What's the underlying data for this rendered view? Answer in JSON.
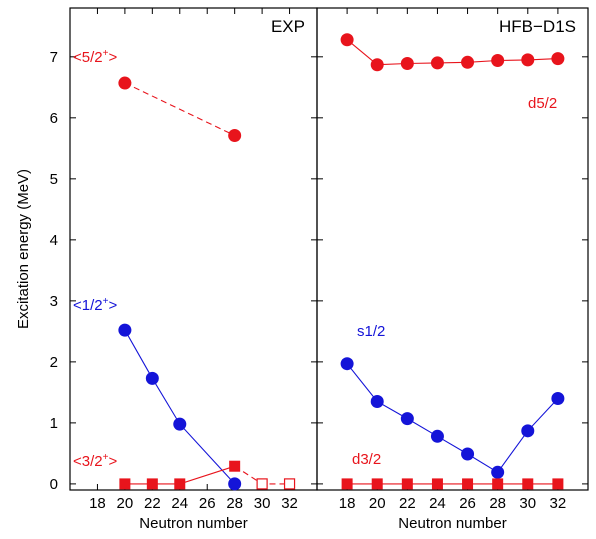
{
  "chart_data": [
    {
      "type": "scatter",
      "title": "EXP",
      "xlabel": "Neutron number",
      "ylabel": "Excitation energy (MeV)",
      "xlim": [
        16,
        34
      ],
      "ylim": [
        -0.1,
        7.8
      ],
      "xticks": [
        18,
        20,
        22,
        24,
        26,
        28,
        30,
        32
      ],
      "yticks": [
        0,
        1,
        2,
        3,
        4,
        5,
        6,
        7
      ],
      "grid": false,
      "series": [
        {
          "name": "<5/2+>",
          "label_main": "<5/2",
          "label_sup": "+",
          "label_end": ">",
          "color": "#e8141c",
          "marker": "circle",
          "line": "dashed",
          "x": [
            20,
            28
          ],
          "y": [
            6.57,
            5.71
          ]
        },
        {
          "name": "<1/2+>",
          "label_main": "<1/2",
          "label_sup": "+",
          "label_end": ">",
          "color": "#1414d8",
          "marker": "circle",
          "line": "solid",
          "x": [
            20,
            22,
            24,
            28
          ],
          "y": [
            2.52,
            1.73,
            0.98,
            0.0
          ]
        },
        {
          "name": "<3/2+>",
          "label_main": "<3/2",
          "label_sup": "+",
          "label_end": ">",
          "color": "#e8141c",
          "marker": "square",
          "line": "solid",
          "x": [
            20,
            22,
            24,
            28
          ],
          "y": [
            0.0,
            0.0,
            0.0,
            0.29
          ]
        },
        {
          "name": "<3/2+> open",
          "color": "#e8141c",
          "marker": "open-square",
          "line": "dashed",
          "x": [
            28,
            30,
            32
          ],
          "y": [
            0.29,
            0.0,
            0.0
          ]
        }
      ]
    },
    {
      "type": "scatter",
      "title": "HFB−D1S",
      "xlabel": "Neutron number",
      "ylabel": "",
      "xlim": [
        16,
        34
      ],
      "ylim": [
        -0.1,
        7.8
      ],
      "xticks": [
        18,
        20,
        22,
        24,
        26,
        28,
        30,
        32
      ],
      "yticks": [
        0,
        1,
        2,
        3,
        4,
        5,
        6,
        7
      ],
      "grid": false,
      "series": [
        {
          "name": "d5/2",
          "color": "#e8141c",
          "marker": "circle",
          "line": "solid",
          "x": [
            18,
            20,
            22,
            24,
            26,
            28,
            30,
            32
          ],
          "y": [
            7.28,
            6.87,
            6.89,
            6.9,
            6.91,
            6.94,
            6.95,
            6.97
          ]
        },
        {
          "name": "s1/2",
          "color": "#1414d8",
          "marker": "circle",
          "line": "solid",
          "x": [
            18,
            20,
            22,
            24,
            26,
            28,
            30,
            32
          ],
          "y": [
            1.97,
            1.35,
            1.07,
            0.78,
            0.49,
            0.19,
            0.87,
            1.4
          ]
        },
        {
          "name": "d3/2",
          "color": "#e8141c",
          "marker": "square",
          "line": "solid",
          "x": [
            18,
            20,
            22,
            24,
            26,
            28,
            30,
            32
          ],
          "y": [
            0,
            0,
            0,
            0,
            0,
            0,
            0,
            0
          ]
        }
      ]
    }
  ]
}
